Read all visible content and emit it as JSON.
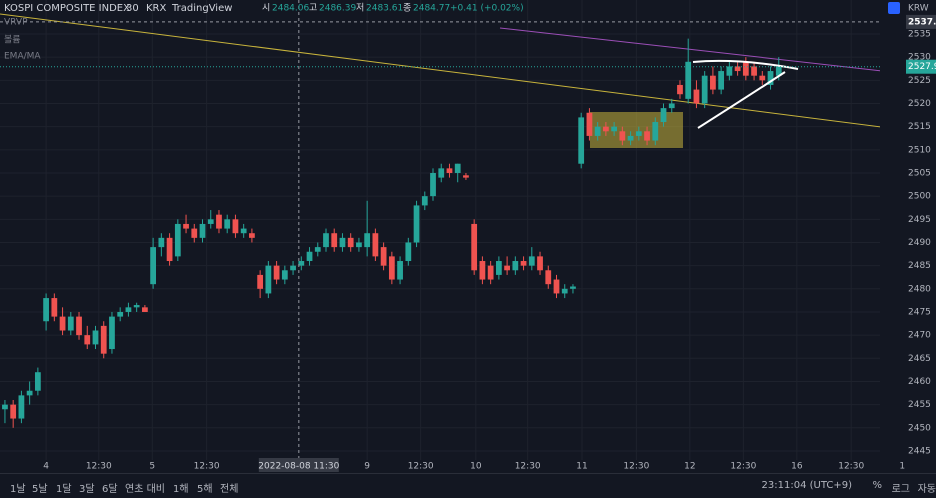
{
  "chart_data": {
    "type": "candlestick",
    "title": "KOSPI COMPOSITE INDEX",
    "interval": "30",
    "exchange": "KRX",
    "source": "TradingView",
    "ohlc_legend": {
      "labels": [
        "시",
        "고",
        "저",
        "종"
      ],
      "values": [
        2484.06,
        2486.39,
        2483.61,
        2484.77
      ],
      "change": "+0.41 (+0.02%)"
    },
    "indicators": [
      "VRVP",
      "볼륨",
      "EMA/MA"
    ],
    "currency": "KRW",
    "open": [
      2454,
      2455,
      2452,
      2457,
      2458,
      2473,
      2478,
      2474,
      2471,
      2474,
      2470,
      2468,
      2472,
      2467,
      2474,
      2475,
      2476,
      2476,
      2481,
      2489,
      2491,
      2487,
      2494,
      2493,
      2491,
      2494,
      2496,
      2493,
      2495,
      2492,
      2492,
      2483,
      2479,
      2485,
      2482,
      2484,
      2485,
      2486,
      2488,
      2489,
      2492,
      2489,
      2491,
      2489,
      2489,
      2492,
      2489,
      2487,
      2482,
      2486,
      2490,
      2498,
      2500,
      2504,
      2506,
      2505,
      2504.5,
      2494,
      2486,
      2485,
      2483,
      2485,
      2484,
      2486,
      2485,
      2487,
      2484,
      2482,
      2479,
      2480,
      2507,
      2518,
      2513,
      2515,
      2514,
      2514,
      2512,
      2513,
      2514,
      2512,
      2516,
      2519,
      2524,
      2521,
      2523,
      2520,
      2526,
      2523,
      2526,
      2528,
      2529,
      2528,
      2526,
      2524,
      2526
    ],
    "high": [
      2456,
      2456,
      2458,
      2460,
      2463,
      2479,
      2479,
      2476,
      2475,
      2475,
      2472,
      2472,
      2473,
      2475,
      2476,
      2477,
      2477,
      2476.5,
      2491,
      2492,
      2492,
      2495,
      2496,
      2494,
      2495,
      2497,
      2497,
      2496,
      2496,
      2494,
      2493,
      2484,
      2486,
      2486,
      2485,
      2486,
      2487,
      2489,
      2490,
      2493,
      2493,
      2492,
      2492,
      2491,
      2499,
      2493,
      2490,
      2488,
      2487,
      2491,
      2499,
      2501,
      2506,
      2507,
      2507,
      2507,
      2505,
      2495,
      2487,
      2486,
      2487,
      2487,
      2487,
      2487,
      2489,
      2488,
      2485,
      2483,
      2481,
      2481,
      2518,
      2519,
      2516,
      2516,
      2516,
      2515,
      2514,
      2515,
      2515,
      2517,
      2520,
      2521,
      2525,
      2534,
      2525,
      2527,
      2528,
      2528,
      2529,
      2529,
      2530,
      2529,
      2527,
      2528,
      2530
    ],
    "low": [
      2451,
      2450,
      2451,
      2455,
      2457,
      2471,
      2473,
      2470,
      2470,
      2469,
      2467,
      2467,
      2465,
      2466,
      2473,
      2474,
      2475,
      2475,
      2480,
      2487,
      2485,
      2486,
      2492,
      2490,
      2490,
      2493,
      2492,
      2492,
      2491,
      2491,
      2490,
      2478,
      2478,
      2481,
      2481,
      2483,
      2484,
      2485,
      2487,
      2488,
      2488,
      2488,
      2488,
      2488,
      2487,
      2486,
      2484,
      2481,
      2481,
      2485,
      2489,
      2497,
      2499,
      2503,
      2504,
      2503,
      2503.5,
      2483,
      2481,
      2481,
      2482,
      2483,
      2483,
      2484,
      2484,
      2483,
      2480,
      2478,
      2478,
      2479,
      2506,
      2512,
      2512,
      2513,
      2513,
      2511,
      2511,
      2512,
      2511,
      2511,
      2515,
      2518,
      2521,
      2520,
      2519,
      2519,
      2522,
      2522,
      2525,
      2526,
      2525,
      2525,
      2524,
      2523,
      2525
    ],
    "close": [
      2455,
      2452,
      2457,
      2458,
      2462,
      2478,
      2474,
      2471,
      2474,
      2470,
      2468,
      2471,
      2466,
      2474,
      2475,
      2476,
      2476.5,
      2475,
      2489,
      2491,
      2486,
      2494,
      2493,
      2491,
      2494,
      2495,
      2493,
      2495,
      2492,
      2493,
      2491,
      2480,
      2485,
      2482,
      2484,
      2485,
      2486,
      2488,
      2489,
      2492,
      2489,
      2491,
      2489,
      2490,
      2492,
      2487,
      2485,
      2482,
      2486,
      2490,
      2498,
      2500,
      2505,
      2506,
      2505,
      2507,
      2504,
      2484,
      2482,
      2482,
      2486,
      2484,
      2486,
      2485,
      2487,
      2484,
      2481,
      2479,
      2480,
      2480.5,
      2517,
      2513,
      2515,
      2514,
      2515,
      2512,
      2513,
      2514,
      2512,
      2516,
      2519,
      2520,
      2522,
      2529,
      2520,
      2526,
      2523,
      2527,
      2528,
      2527,
      2526,
      2526,
      2525,
      2527,
      2527.94
    ],
    "up_color": "#26a69a",
    "down_color": "#ef5350",
    "last_price": 2527.94,
    "crosshair": {
      "x": 35.7,
      "time": "2022-08-08 11:30",
      "price": 2537.61
    },
    "xlim": [
      -0.6,
      113.1
    ],
    "xticks": [
      {
        "value": 5,
        "label": "4"
      },
      {
        "value": 11.4,
        "label": "12:30"
      },
      {
        "value": 17.9,
        "label": "5"
      },
      {
        "value": 24.5,
        "label": "12:30"
      },
      {
        "value": 44,
        "label": "9"
      },
      {
        "value": 50.5,
        "label": "12:30"
      },
      {
        "value": 57.2,
        "label": "10"
      },
      {
        "value": 63.5,
        "label": "12:30"
      },
      {
        "value": 70.1,
        "label": "11"
      },
      {
        "value": 76.7,
        "label": "12:30"
      },
      {
        "value": 83.2,
        "label": "12"
      },
      {
        "value": 89.7,
        "label": "12:30"
      },
      {
        "value": 96.2,
        "label": "16"
      },
      {
        "value": 102.8,
        "label": "12:30"
      },
      {
        "value": 109,
        "label": "1"
      }
    ],
    "ylim": [
      2443.05,
      2539.1
    ],
    "yticks": [
      2445,
      2450,
      2455,
      2460,
      2465,
      2470,
      2475,
      2480,
      2485,
      2490,
      2495,
      2500,
      2505,
      2510,
      2515,
      2520,
      2525,
      2530,
      2535
    ],
    "grid": true
  },
  "toolbar": {
    "ranges": [
      "1날",
      "5날",
      "1달",
      "3달",
      "6달",
      "연초 대비",
      "1해",
      "5해",
      "전체"
    ],
    "clock": "23:11:04 (UTC+9)",
    "options": [
      "%",
      "로그",
      "자동"
    ]
  }
}
